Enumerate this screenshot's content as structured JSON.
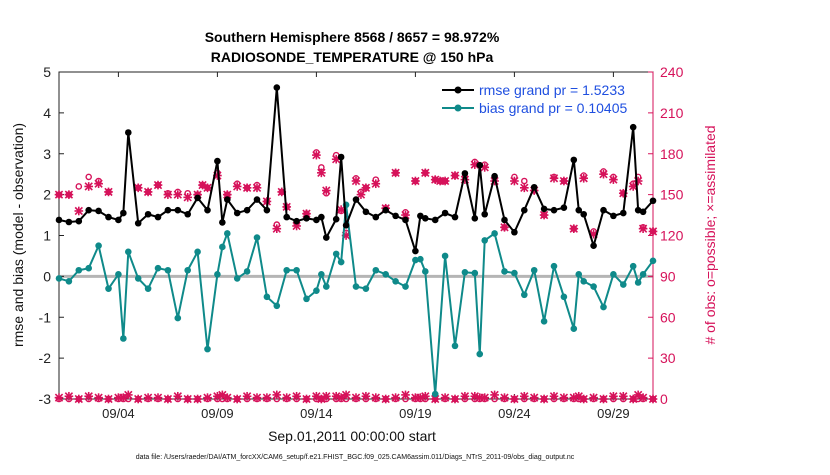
{
  "colors": {
    "rmse": "#000000",
    "bias": "#0f8a8a",
    "obs": "#d6125a",
    "zero_line": "#b5b5b5",
    "legend_rmse_text": "#1f4fe0",
    "legend_bias_text": "#1f4fe0"
  },
  "chart_data": {
    "type": "line",
    "title": "Southern Hemisphere 8568 / 8657 = 98.972%",
    "subtitle": "RADIOSONDE_TEMPERATURE @ 150 hPa",
    "xlabel": "Sep.01,2011 00:00:00 start",
    "ylabel_left": "rmse and bias (model - observation)",
    "ylabel_right": "# of obs: o=possible; ×=assimilated",
    "footer": "data file: /Users/raeder/DAI/ATM_forcXX/CAM6_setup/f.e21.FHIST_BGC.f09_025.CAM6assim.011/Diags_NTrS_2011-09/obs_diag_output.nc",
    "xlim": [
      1.0,
      31.0
    ],
    "ylim_left": [
      -3,
      5
    ],
    "ylim_right": [
      0,
      240
    ],
    "x_ticks": [
      4,
      9,
      14,
      19,
      24,
      29
    ],
    "x_tick_labels": [
      "09/04",
      "09/09",
      "09/14",
      "09/19",
      "09/24",
      "09/29"
    ],
    "y_ticks_left": [
      -3,
      -2,
      -1,
      0,
      1,
      2,
      3,
      4,
      5
    ],
    "y_ticks_right": [
      0,
      30,
      60,
      90,
      120,
      150,
      180,
      210,
      240
    ],
    "legend": [
      {
        "name": "rmse grand pr = 1.5233"
      },
      {
        "name": "bias grand pr = 0.10405"
      }
    ],
    "x": [
      1.0,
      1.5,
      2.0,
      2.5,
      3.0,
      3.5,
      4.0,
      4.25,
      4.5,
      5.0,
      5.5,
      6.0,
      6.5,
      7.0,
      7.5,
      8.0,
      8.5,
      9.0,
      9.25,
      9.5,
      10.0,
      10.5,
      11.0,
      11.5,
      12.0,
      12.5,
      13.0,
      13.5,
      14.0,
      14.25,
      14.5,
      15.0,
      15.25,
      15.5,
      16.0,
      16.5,
      17.0,
      17.5,
      18.0,
      18.5,
      19.0,
      19.25,
      19.5,
      20.0,
      20.5,
      21.0,
      21.5,
      22.0,
      22.25,
      22.5,
      23.0,
      23.5,
      24.0,
      24.5,
      25.0,
      25.5,
      26.0,
      26.5,
      27.0,
      27.25,
      27.5,
      28.0,
      28.5,
      29.0,
      29.5,
      30.0,
      30.25,
      30.5,
      31.0
    ],
    "series": [
      {
        "name": "rmse",
        "values": [
          1.38,
          1.33,
          1.35,
          1.62,
          1.6,
          1.45,
          1.38,
          1.55,
          3.52,
          1.3,
          1.52,
          1.45,
          1.62,
          1.62,
          1.52,
          1.92,
          1.62,
          2.82,
          1.32,
          1.88,
          1.55,
          1.62,
          1.88,
          1.62,
          4.62,
          1.45,
          1.35,
          1.42,
          1.38,
          1.45,
          0.95,
          1.4,
          2.92,
          1.25,
          1.88,
          1.58,
          1.45,
          1.62,
          1.48,
          1.38,
          0.62,
          1.48,
          1.42,
          1.38,
          1.55,
          1.45,
          2.52,
          1.42,
          2.72,
          1.52,
          2.45,
          1.38,
          1.08,
          1.62,
          2.18,
          1.65,
          1.62,
          1.68,
          2.85,
          1.62,
          1.52,
          0.75,
          1.62,
          1.48,
          1.55,
          3.65,
          1.62,
          1.58,
          1.85
        ]
      },
      {
        "name": "bias",
        "values": [
          -0.05,
          -0.12,
          0.15,
          0.2,
          0.75,
          -0.3,
          0.05,
          -1.52,
          0.6,
          -0.05,
          -0.3,
          0.2,
          0.15,
          -1.02,
          0.15,
          0.6,
          -1.78,
          0.05,
          0.72,
          1.05,
          -0.05,
          0.12,
          0.95,
          -0.5,
          -0.72,
          0.15,
          0.15,
          -0.55,
          -0.35,
          0.05,
          -0.25,
          0.55,
          0.35,
          1.75,
          -0.25,
          -0.3,
          0.15,
          0.05,
          -0.12,
          -0.25,
          0.4,
          0.42,
          0.12,
          -2.88,
          0.5,
          -1.7,
          0.1,
          0.08,
          -1.9,
          0.88,
          1.05,
          0.12,
          0.08,
          -0.45,
          0.15,
          -1.1,
          0.25,
          -0.5,
          -1.28,
          0.05,
          -0.12,
          -0.25,
          -0.75,
          0.05,
          -0.2,
          0.25,
          -0.15,
          0.05,
          0.38
        ]
      },
      {
        "name": "obs_possible",
        "values": [
          0,
          0,
          0,
          0,
          0,
          0,
          0,
          0,
          0,
          0,
          0,
          0,
          0,
          0,
          0,
          0,
          0,
          0,
          0,
          0,
          0,
          0,
          0,
          0,
          0,
          0,
          0,
          0,
          0,
          0,
          0,
          0,
          0,
          0,
          0,
          0,
          0,
          0,
          0,
          0,
          0,
          0,
          0,
          0,
          0,
          0,
          0,
          0,
          0,
          0,
          0,
          0,
          0,
          0,
          0,
          0,
          0,
          0,
          0,
          0,
          0,
          0,
          0,
          0,
          0,
          0,
          0,
          0,
          0
        ]
      },
      {
        "name": "obs_assimilated",
        "values": [
          1,
          2,
          0,
          2,
          1,
          0,
          1,
          1,
          3,
          0,
          1,
          1,
          0,
          2,
          0,
          0,
          1,
          2,
          3,
          1,
          0,
          2,
          1,
          1,
          3,
          1,
          2,
          0,
          2,
          0,
          2,
          2,
          1,
          3,
          1,
          2,
          1,
          0,
          1,
          3,
          1,
          1,
          2,
          0,
          1,
          0,
          2,
          2,
          1,
          1,
          3,
          1,
          0,
          2,
          1,
          0,
          2,
          1,
          1,
          2,
          0,
          1,
          0,
          2,
          2,
          0,
          3,
          1,
          0
        ]
      }
    ],
    "upper_obs_x": [
      1.0,
      1.5,
      2.0,
      2.5,
      3.0,
      3.5,
      5.0,
      5.5,
      6.0,
      6.5,
      7.0,
      7.5,
      8.0,
      8.25,
      8.5,
      9.0,
      9.5,
      10.0,
      10.5,
      11.0,
      11.5,
      12.0,
      12.25,
      12.5,
      13.0,
      13.5,
      14.0,
      14.25,
      14.5,
      15.0,
      15.25,
      15.5,
      16.0,
      16.25,
      16.5,
      17.0,
      17.5,
      18.0,
      18.5,
      19.0,
      19.5,
      20.0,
      20.25,
      20.5,
      21.0,
      21.5,
      22.0,
      22.5,
      23.0,
      23.5,
      24.0,
      24.5,
      25.0,
      25.5,
      26.0,
      26.5,
      27.0,
      27.5,
      28.0,
      28.5,
      29.0,
      29.5,
      30.0,
      30.25,
      30.5,
      31.0
    ],
    "upper_obs_possible": [
      150,
      150,
      156,
      163,
      160,
      152,
      155,
      152,
      157,
      151,
      152,
      151,
      150,
      157,
      155,
      166,
      150,
      158,
      155,
      157,
      145,
      128,
      152,
      141,
      129,
      136,
      181,
      170,
      151,
      179,
      138,
      122,
      162,
      152,
      155,
      161,
      140,
      166,
      137,
      160,
      166,
      161,
      160,
      160,
      164,
      163,
      174,
      172,
      162,
      126,
      163,
      160,
      153,
      135,
      163,
      160,
      125,
      164,
      123,
      167,
      163,
      151,
      158,
      163,
      126,
      123
    ],
    "upper_obs_assimilated": [
      150,
      150,
      138,
      156,
      158,
      152,
      155,
      152,
      157,
      150,
      150,
      148,
      150,
      157,
      155,
      164,
      150,
      156,
      155,
      155,
      145,
      125,
      152,
      141,
      127,
      136,
      179,
      166,
      153,
      176,
      139,
      120,
      160,
      150,
      155,
      158,
      140,
      166,
      135,
      160,
      166,
      161,
      160,
      160,
      164,
      161,
      172,
      170,
      160,
      126,
      160,
      155,
      153,
      135,
      162,
      160,
      125,
      162,
      121,
      165,
      161,
      151,
      156,
      160,
      125,
      123
    ]
  }
}
